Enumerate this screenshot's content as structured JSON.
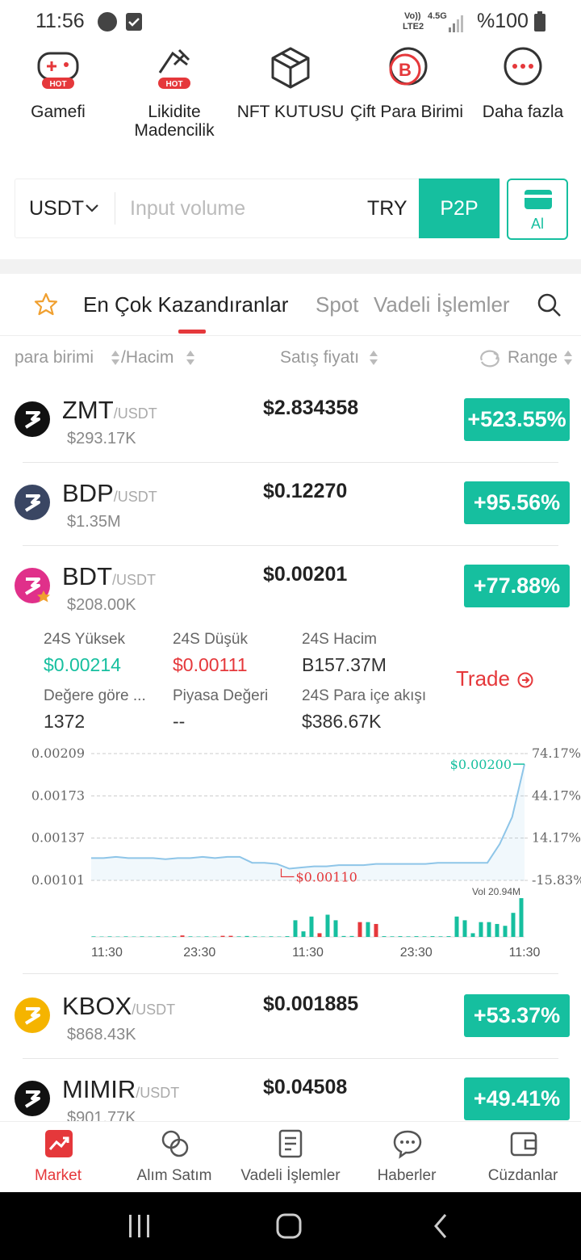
{
  "status_bar": {
    "time": "11:56",
    "volte": "Vo))",
    "lte": "LTE2",
    "net": "4.5G",
    "battery": "%100"
  },
  "shortcuts": [
    {
      "label": "Gamefi",
      "badge": "HOT"
    },
    {
      "label": "Likidite Madencilik",
      "badge": "HOT"
    },
    {
      "label": "NFT KUTUSU"
    },
    {
      "label": "Çift Para Birimi",
      "icon_text": "B"
    },
    {
      "label": "Daha fazla"
    }
  ],
  "trade_box": {
    "currency": "USDT",
    "placeholder": "Input volume",
    "fiat": "TRY",
    "p2p": "P2P",
    "buy": "Al"
  },
  "tabs": {
    "items": [
      "En Çok Kazandıranlar",
      "Spot",
      "Vadeli İşlemler"
    ],
    "active": 0
  },
  "columns": {
    "currency": "para birimi",
    "volume": "/Hacim",
    "price": "Satış fiyatı",
    "range": "Range"
  },
  "rows": [
    {
      "symbol": "ZMT",
      "quote": "/USDT",
      "volume": "$293.17K",
      "price": "$2.834358",
      "change": "+523.55%"
    },
    {
      "symbol": "BDP",
      "quote": "/USDT",
      "volume": "$1.35M",
      "price": "$0.12270",
      "change": "+95.56%"
    },
    {
      "symbol": "BDT",
      "quote": "/USDT",
      "volume": "$208.00K",
      "price": "$0.00201",
      "change": "+77.88%"
    },
    {
      "symbol": "KBOX",
      "quote": "/USDT",
      "volume": "$868.43K",
      "price": "$0.001885",
      "change": "+53.37%"
    },
    {
      "symbol": "MIMIR",
      "quote": "/USDT",
      "volume": "$901.77K",
      "price": "$0.04508",
      "change": "+49.41%"
    }
  ],
  "detail": {
    "stats": [
      {
        "label": "24S Yüksek",
        "value": "$0.00214"
      },
      {
        "label": "24S Düşük",
        "value": "$0.00111"
      },
      {
        "label": "24S Hacim",
        "value": "B157.37M"
      },
      {
        "label": "Değere göre ...",
        "value": "1372"
      },
      {
        "label": "Piyasa Değeri",
        "value": "--"
      },
      {
        "label": "24S Para içe akışı",
        "value": "$386.67K"
      }
    ],
    "trade": "Trade",
    "chart": {
      "ylim": [
        0.00101,
        0.00209
      ],
      "yticks": [
        0.00209,
        0.00173,
        0.00137,
        0.00101
      ],
      "y2lim": [
        -15.83,
        74.17
      ],
      "y2ticks": [
        {
          "value": 74.17,
          "label": "74.17%"
        },
        {
          "value": 44.17,
          "label": "44.17%"
        },
        {
          "value": 14.17,
          "label": "14.17%"
        },
        {
          "value": -15.83,
          "label": "-15.83%"
        }
      ],
      "xticks": [
        "11:30",
        "23:30",
        "11:30",
        "23:30",
        "11:30"
      ],
      "price": [
        0.0012,
        0.0012,
        0.00121,
        0.0012,
        0.0012,
        0.0012,
        0.00119,
        0.0012,
        0.0012,
        0.00121,
        0.0012,
        0.00121,
        0.00121,
        0.00116,
        0.00116,
        0.00115,
        0.00111,
        0.00112,
        0.00113,
        0.00113,
        0.00114,
        0.00114,
        0.00114,
        0.00115,
        0.00115,
        0.00115,
        0.00115,
        0.00115,
        0.00116,
        0.00116,
        0.00116,
        0.00116,
        0.00116,
        0.00132,
        0.00155,
        0.002
      ],
      "last_label": "$0.00200",
      "low_label": "$0.00110",
      "volume_label": "Vol 20.94M",
      "volume": [
        0.3,
        0.2,
        0.3,
        0.2,
        0.3,
        0.2,
        0.3,
        0.2,
        0.3,
        0.2,
        0.3,
        0.8,
        0.3,
        0.2,
        0.3,
        0.2,
        0.6,
        0.6,
        0.3,
        0.5,
        0.3,
        0.2,
        0.3,
        0.2,
        0.4,
        9,
        3,
        11,
        2,
        12,
        9,
        0.5,
        0.5,
        8,
        8,
        7,
        0.4,
        0.3,
        0.4,
        0.3,
        0.4,
        0.3,
        0.4,
        0.3,
        0.4,
        11,
        9,
        2,
        8,
        8,
        7,
        6,
        13,
        20.94
      ],
      "volume_up": [
        true,
        true,
        true,
        true,
        true,
        true,
        true,
        true,
        true,
        true,
        true,
        false,
        true,
        true,
        true,
        true,
        false,
        false,
        true,
        true,
        true,
        true,
        true,
        true,
        true,
        true,
        true,
        true,
        false,
        true,
        true,
        true,
        true,
        false,
        true,
        false,
        true,
        true,
        true,
        true,
        true,
        true,
        true,
        true,
        true,
        true,
        true,
        true,
        true,
        true,
        true,
        true,
        true,
        true
      ]
    }
  },
  "nav": {
    "items": [
      "Market",
      "Alım Satım",
      "Vadeli İşlemler",
      "Haberler",
      "Cüzdanlar"
    ],
    "active": 0
  }
}
